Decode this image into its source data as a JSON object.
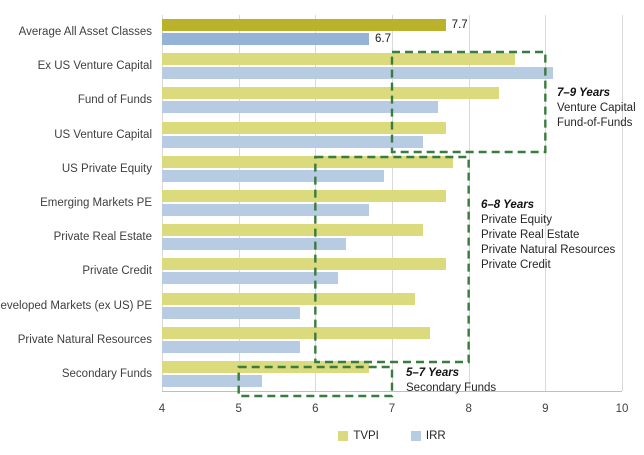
{
  "chart_data": {
    "type": "bar",
    "orientation": "horizontal",
    "title": "",
    "x_axis": {
      "min": 4,
      "max": 10,
      "ticks": [
        "4",
        "5",
        "6",
        "7",
        "8",
        "9",
        "10"
      ]
    },
    "grid": "vertical gridlines at each integer tick",
    "categories": [
      "Average All Asset Classes",
      "Ex US Venture Capital",
      "Fund of Funds",
      "US Venture Capital",
      "US Private Equity",
      "Emerging Markets PE",
      "Private Real Estate",
      "Private Credit",
      "Developed Markets (ex US) PE",
      "Private Natural Resources",
      "Secondary Funds"
    ],
    "series": [
      {
        "name": "TVPI",
        "values": [
          7.7,
          8.6,
          8.4,
          7.7,
          7.8,
          7.7,
          7.4,
          7.7,
          7.3,
          7.5,
          6.7
        ]
      },
      {
        "name": "IRR",
        "values": [
          6.7,
          9.1,
          7.6,
          7.4,
          6.9,
          6.7,
          6.4,
          6.3,
          5.8,
          5.8,
          5.3
        ]
      }
    ],
    "highlighted_category": "Average All Asset Classes",
    "value_labels": {
      "tvpi": "7.7",
      "irr": "6.7"
    },
    "annotations": [
      {
        "title": "7–9 Years",
        "lines": [
          "Venture Capital",
          "Fund-of-Funds"
        ],
        "x_range": [
          7,
          9
        ]
      },
      {
        "title": "6–8 Years",
        "lines": [
          "Private Equity",
          "Private Real Estate",
          "Private Natural Resources",
          "Private Credit"
        ],
        "x_range": [
          6,
          8
        ]
      },
      {
        "title": "5–7 Years",
        "lines": [
          "Secondary Funds"
        ],
        "x_range": [
          5,
          7
        ]
      }
    ],
    "legend": [
      "TVPI",
      "IRR"
    ],
    "legend_position": "bottom-center",
    "colors": {
      "tvpi": "#dbdb7d",
      "tvpi_highlight": "#b9b22a",
      "irr": "#b7cbe2",
      "irr_highlight": "#95b3d7",
      "annotation_box": "#3a7b3e",
      "gridline": "#d9d9d9"
    }
  }
}
